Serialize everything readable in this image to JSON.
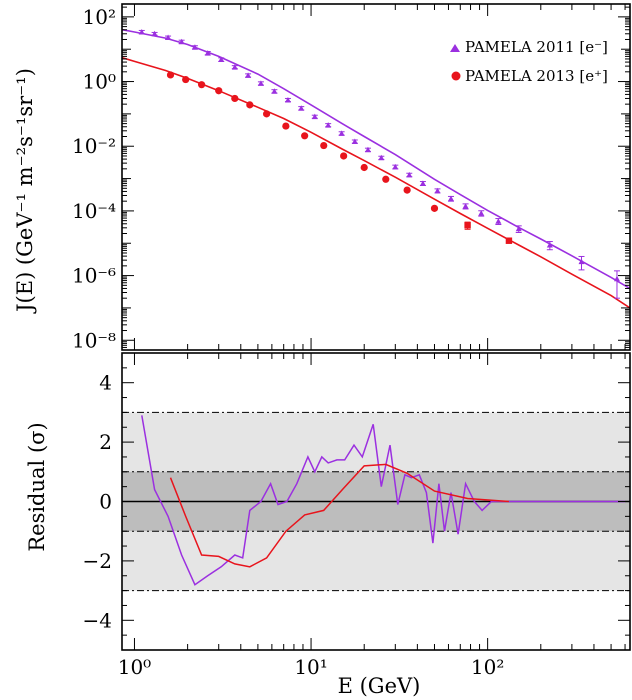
{
  "chart_data": [
    {
      "type": "scatter",
      "panel": "top",
      "title": "",
      "xlabel": "",
      "ylabel": "J(E)  (GeV⁻¹ m⁻²s⁻¹sr⁻¹)",
      "x_scale": "log",
      "y_scale": "log",
      "xlim": [
        0.85,
        640
      ],
      "ylim": [
        5e-09,
        250
      ],
      "y_ticks": [
        {
          "value": 100,
          "label": "10²"
        },
        {
          "value": 1,
          "label": "10⁰"
        },
        {
          "value": 0.01,
          "label": "10⁻²"
        },
        {
          "value": 0.0001,
          "label": "10⁻⁴"
        },
        {
          "value": 1e-06,
          "label": "10⁻⁶"
        },
        {
          "value": 1e-08,
          "label": "10⁻⁸"
        }
      ],
      "legend_position": "top-right",
      "series": [
        {
          "name": "PAMELA 2011 [e⁻]",
          "color": "#9b30e0",
          "marker": "triangle",
          "points": [
            {
              "x": 1.1,
              "y": 34,
              "err": 4
            },
            {
              "x": 1.3,
              "y": 30,
              "err": 3
            },
            {
              "x": 1.55,
              "y": 23,
              "err": 2.5
            },
            {
              "x": 1.85,
              "y": 17,
              "err": 2
            },
            {
              "x": 2.2,
              "y": 11.5,
              "err": 1.3
            },
            {
              "x": 2.6,
              "y": 7.6,
              "err": 0.9
            },
            {
              "x": 3.1,
              "y": 4.8,
              "err": 0.6
            },
            {
              "x": 3.7,
              "y": 2.8,
              "err": 0.3
            },
            {
              "x": 4.4,
              "y": 1.55,
              "err": 0.18
            },
            {
              "x": 5.2,
              "y": 0.88,
              "err": 0.1
            },
            {
              "x": 6.2,
              "y": 0.5,
              "err": 0.06
            },
            {
              "x": 7.4,
              "y": 0.27,
              "err": 0.03
            },
            {
              "x": 8.8,
              "y": 0.15,
              "err": 0.018
            },
            {
              "x": 10.5,
              "y": 0.082,
              "err": 0.009
            },
            {
              "x": 12.5,
              "y": 0.045,
              "err": 0.005
            },
            {
              "x": 14.9,
              "y": 0.025,
              "err": 0.003
            },
            {
              "x": 17.7,
              "y": 0.014,
              "err": 0.0016
            },
            {
              "x": 21,
              "y": 0.0078,
              "err": 0.0009
            },
            {
              "x": 25,
              "y": 0.0044,
              "err": 0.0005
            },
            {
              "x": 30,
              "y": 0.0023,
              "err": 0.0003
            },
            {
              "x": 36,
              "y": 0.0013,
              "err": 0.00016
            },
            {
              "x": 43,
              "y": 0.00071,
              "err": 0.0001
            },
            {
              "x": 52,
              "y": 0.00042,
              "err": 6e-05
            },
            {
              "x": 62,
              "y": 0.00024,
              "err": 4e-05
            },
            {
              "x": 75,
              "y": 0.00014,
              "err": 2.5e-05
            },
            {
              "x": 92,
              "y": 8.5e-05,
              "err": 1.6e-05
            },
            {
              "x": 115,
              "y": 4.8e-05,
              "err": 1e-05
            },
            {
              "x": 150,
              "y": 2.8e-05,
              "err": 6.5e-06
            },
            {
              "x": 225,
              "y": 8.8e-06,
              "err": 2.5e-06
            },
            {
              "x": 340,
              "y": 2.7e-06,
              "err": 1.2e-06
            },
            {
              "x": 540,
              "y": 8e-07,
              "err": 6e-07
            }
          ]
        },
        {
          "name": "PAMELA 2013 [e⁺]",
          "color": "#e8141c",
          "marker": "circle",
          "points": [
            {
              "x": 1.6,
              "y": 1.6
            },
            {
              "x": 1.95,
              "y": 1.15
            },
            {
              "x": 2.4,
              "y": 0.8
            },
            {
              "x": 3.0,
              "y": 0.52
            },
            {
              "x": 3.7,
              "y": 0.3
            },
            {
              "x": 4.5,
              "y": 0.19
            },
            {
              "x": 5.6,
              "y": 0.1
            },
            {
              "x": 7.2,
              "y": 0.042
            },
            {
              "x": 9.2,
              "y": 0.021
            },
            {
              "x": 11.8,
              "y": 0.0105
            },
            {
              "x": 15.3,
              "y": 0.005
            },
            {
              "x": 20,
              "y": 0.0022
            },
            {
              "x": 26.5,
              "y": 0.00095
            },
            {
              "x": 35,
              "y": 0.00044
            },
            {
              "x": 50,
              "y": 0.00012
            },
            {
              "x": 77,
              "y": 3.6e-05,
              "err": 9e-06
            },
            {
              "x": 132,
              "y": 1.2e-05,
              "err": 2e-06
            }
          ]
        }
      ],
      "fits": [
        {
          "for_series": "PAMELA 2011 [e⁻]",
          "color": "#9b30e0",
          "x": [
            0.85,
            1,
            1.5,
            2,
            3,
            5,
            7,
            10,
            15,
            20,
            30,
            50,
            70,
            100,
            150,
            200,
            300,
            500,
            640
          ],
          "y": [
            40,
            34,
            22,
            14,
            6,
            1.7,
            0.6,
            0.19,
            0.05,
            0.02,
            0.0055,
            0.00095,
            0.00032,
            0.000104,
            3.1e-05,
            1.35e-05,
            4.1e-06,
            8.8e-07,
            4e-07
          ]
        },
        {
          "for_series": "PAMELA 2013 [e⁺]",
          "color": "#e8141c",
          "x": [
            0.85,
            1,
            1.5,
            2,
            3,
            5,
            7,
            10,
            15,
            20,
            30,
            50,
            70,
            100,
            150,
            200,
            300,
            500,
            640
          ],
          "y": [
            5.5,
            4.2,
            2.2,
            1.25,
            0.52,
            0.16,
            0.072,
            0.027,
            0.0082,
            0.0036,
            0.0011,
            0.00023,
            8.3e-05,
            2.9e-05,
            8.8e-06,
            3.8e-06,
            1.1e-06,
            2.4e-07,
            1e-07
          ]
        }
      ]
    },
    {
      "type": "line",
      "panel": "bottom",
      "title": "",
      "xlabel": "E (GeV)",
      "ylabel": "Residual (σ)",
      "x_scale": "log",
      "xlim": [
        0.85,
        640
      ],
      "ylim": [
        -5,
        5
      ],
      "y_ticks": [
        {
          "value": 4,
          "label": "4"
        },
        {
          "value": 2,
          "label": "2"
        },
        {
          "value": 0,
          "label": "0"
        },
        {
          "value": -2,
          "label": "−2"
        },
        {
          "value": -4,
          "label": "−4"
        }
      ],
      "x_ticks": [
        {
          "value": 1,
          "label": "10⁰"
        },
        {
          "value": 10,
          "label": "10¹"
        },
        {
          "value": 100,
          "label": "10²"
        }
      ],
      "bands": [
        {
          "low": -3,
          "high": 3,
          "color": "#e5e5e5"
        },
        {
          "low": -1,
          "high": 1,
          "color": "#bdbdbd"
        }
      ],
      "reference_lines": [
        {
          "y": 3,
          "style": "dash-dot"
        },
        {
          "y": 1,
          "style": "dash-dot"
        },
        {
          "y": -1,
          "style": "dash-dot"
        },
        {
          "y": -3,
          "style": "dash-dot"
        },
        {
          "y": 0,
          "style": "solid"
        }
      ],
      "series": [
        {
          "name": "PAMELA 2011 [e⁻]",
          "color": "#9b30e0",
          "x": [
            1.1,
            1.3,
            1.55,
            1.85,
            2.2,
            2.6,
            3.1,
            3.7,
            4.1,
            4.5,
            5.2,
            5.9,
            6.5,
            7.3,
            8.3,
            9.6,
            10.5,
            11.5,
            12.5,
            14,
            15.5,
            17.5,
            19.5,
            22.5,
            25,
            28,
            31,
            34,
            37,
            41,
            45,
            49,
            53,
            57,
            62,
            68,
            75,
            84,
            93,
            105,
            125,
            200,
            350,
            600
          ],
          "y": [
            2.9,
            0.4,
            -0.5,
            -1.8,
            -2.8,
            -2.5,
            -2.2,
            -1.8,
            -1.9,
            -0.3,
            0.0,
            0.6,
            -0.1,
            0.0,
            0.6,
            1.5,
            1.0,
            1.5,
            1.3,
            1.4,
            1.4,
            1.9,
            1.5,
            2.6,
            0.5,
            1.9,
            -0.1,
            0.9,
            0.8,
            0.9,
            0.3,
            -1.4,
            0.6,
            -1.0,
            0.3,
            -1.1,
            0.6,
            0.0,
            -0.3,
            0.0,
            0.0,
            0.0,
            0.0,
            0.0
          ]
        },
        {
          "name": "PAMELA 2013 [e⁺]",
          "color": "#e8141c",
          "x": [
            1.6,
            1.95,
            2.4,
            3.0,
            3.7,
            4.5,
            5.6,
            7.2,
            9.2,
            11.8,
            15.3,
            20,
            26.5,
            35,
            50,
            77,
            132
          ],
          "y": [
            0.8,
            -0.5,
            -1.8,
            -1.85,
            -2.1,
            -2.2,
            -1.9,
            -1.0,
            -0.45,
            -0.3,
            0.45,
            1.2,
            1.25,
            0.95,
            0.35,
            0.1,
            0.0
          ]
        }
      ]
    }
  ]
}
